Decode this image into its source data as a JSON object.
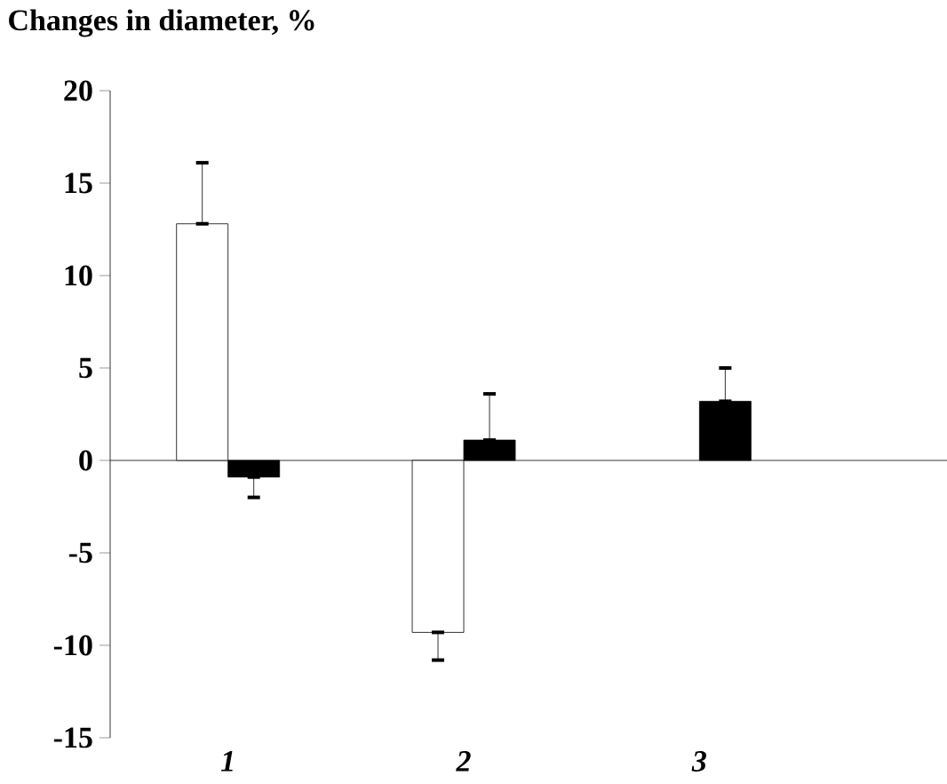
{
  "chart_data": {
    "type": "bar",
    "ylabel": "Changes in diameter, %",
    "categories": [
      "*1*",
      "*2*",
      "*3*"
    ],
    "series": [
      {
        "color": "#ffffff",
        "values": [
          12.8,
          -9.3,
          null
        ],
        "errors": [
          [
            12.8,
            16.1
          ],
          [
            -10.8,
            -9.3
          ],
          null
        ]
      },
      {
        "color": "#000000",
        "values": [
          -0.9,
          1.1,
          3.2
        ],
        "errors": [
          [
            -2.0,
            -0.9
          ],
          [
            1.1,
            3.6
          ],
          [
            3.2,
            5.0
          ]
        ]
      }
    ],
    "ylim": [
      -15,
      20
    ],
    "yticks": [
      -15,
      -10,
      -5,
      0,
      5,
      10,
      15,
      20
    ]
  }
}
